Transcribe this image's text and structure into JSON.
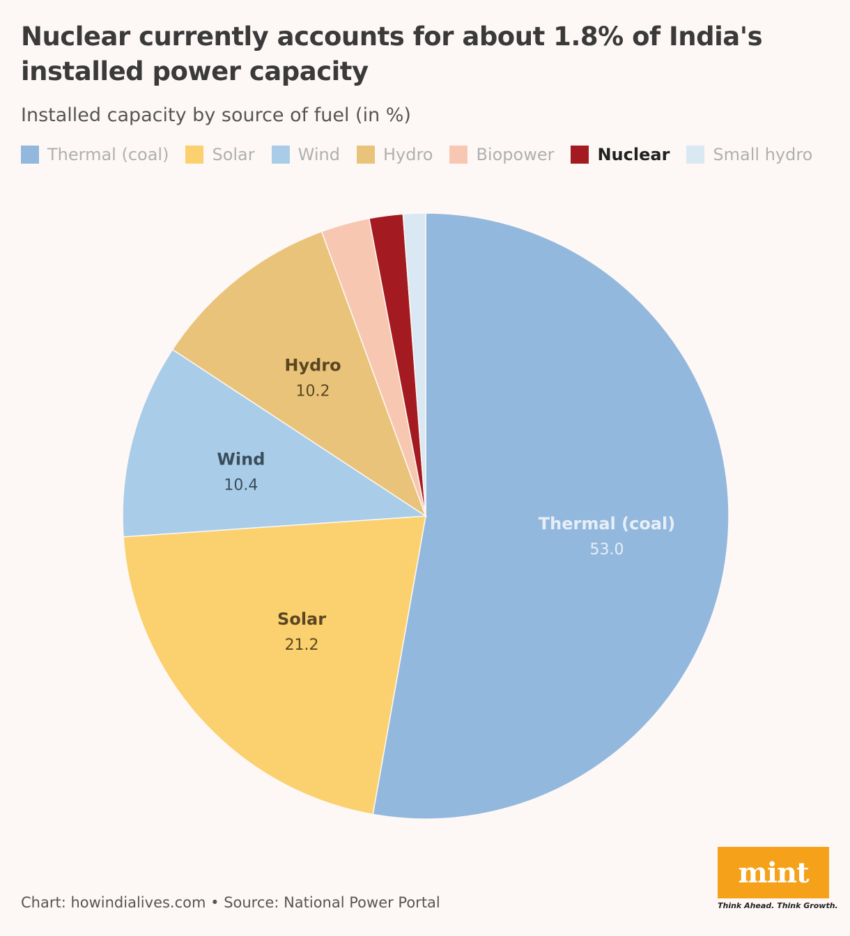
{
  "title": "Nuclear currently accounts for about 1.8% of India's installed power capacity",
  "subtitle": "Installed capacity by source of fuel (in %)",
  "footer": "Chart: howindialives.com • Source: National Power Portal",
  "logo": {
    "text": "mint",
    "tagline": "Think Ahead. Think Growth.",
    "color": "#f5a21a"
  },
  "legend": [
    {
      "label": "Thermal (coal)",
      "color": "#93b8dd",
      "highlight": false
    },
    {
      "label": "Solar",
      "color": "#fbd06f",
      "highlight": false
    },
    {
      "label": "Wind",
      "color": "#a9cde8",
      "highlight": false
    },
    {
      "label": "Hydro",
      "color": "#e9c37a",
      "highlight": false
    },
    {
      "label": "Biopower",
      "color": "#f8c7b1",
      "highlight": false
    },
    {
      "label": "Nuclear",
      "color": "#a31b20",
      "highlight": true
    },
    {
      "label": "Small hydro",
      "color": "#d9e8f3",
      "highlight": false
    }
  ],
  "chart_data": {
    "type": "pie",
    "title": "Nuclear currently accounts for about 1.8% of India's installed power capacity",
    "subtitle": "Installed capacity by source of fuel (in %)",
    "unit": "%",
    "legend_position": "top",
    "categories": [
      "Thermal (coal)",
      "Solar",
      "Wind",
      "Hydro",
      "Biopower",
      "Nuclear",
      "Small hydro"
    ],
    "values": [
      53.0,
      21.2,
      10.4,
      10.2,
      2.6,
      1.8,
      1.2
    ],
    "colors": [
      "#93b8dd",
      "#fbd06f",
      "#a9cde8",
      "#e9c37a",
      "#f8c7b1",
      "#a31b20",
      "#d9e8f3"
    ],
    "labels": [
      {
        "category": "Thermal (coal)",
        "name": "Thermal (coal)",
        "value": "53.0",
        "color": "#e6eff8"
      },
      {
        "category": "Solar",
        "name": "Solar",
        "value": "21.2",
        "color": "#5a4722"
      },
      {
        "category": "Wind",
        "name": "Wind",
        "value": "10.4",
        "color": "#3b4c5a"
      },
      {
        "category": "Hydro",
        "name": "Hydro",
        "value": "10.2",
        "color": "#5a4722"
      }
    ]
  }
}
